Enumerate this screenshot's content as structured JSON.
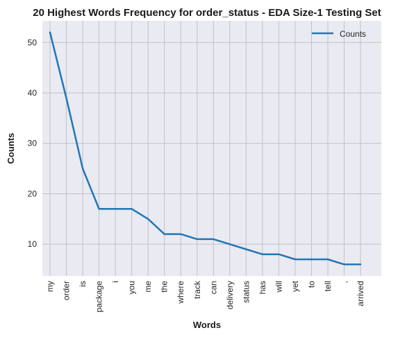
{
  "chart_data": {
    "type": "line",
    "title": "20 Highest Words Frequency for order_status - EDA Size-1 Testing Set",
    "xlabel": "Words",
    "ylabel": "Counts",
    "categories": [
      "my",
      "order",
      "is",
      "package",
      "i",
      "you",
      "me",
      "the",
      "where",
      "track",
      "can",
      "delivery",
      "status",
      "has",
      "will",
      "yet",
      "to",
      "tell",
      ",",
      "arrived"
    ],
    "series": [
      {
        "name": "Counts",
        "values": [
          52,
          39,
          25,
          17,
          17,
          17,
          15,
          12,
          12,
          11,
          11,
          10,
          9,
          8,
          8,
          7,
          7,
          7,
          6,
          6
        ],
        "color": "#1f77b4"
      }
    ],
    "yticks": [
      10,
      20,
      30,
      40,
      50
    ],
    "ylim": [
      3.7,
      54.3
    ],
    "grid": true,
    "legend": "top-right",
    "background": "#eaeaf2",
    "grid_color": "#c0c0c6"
  }
}
